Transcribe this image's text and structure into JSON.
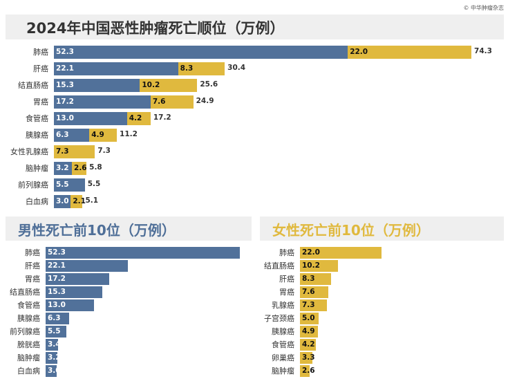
{
  "credit": "© 中华肿瘤杂志",
  "colors": {
    "male": "#51719a",
    "female": "#e0b93e"
  },
  "chart_data": [
    {
      "type": "bar",
      "stacked": true,
      "orientation": "horizontal",
      "title": "2024年中国恶性肿瘤死亡顺位（万例）",
      "categories": [
        "肺癌",
        "肝癌",
        "结直肠癌",
        "胃癌",
        "食管癌",
        "胰腺癌",
        "女性乳腺癌",
        "脑肿瘤",
        "前列腺癌",
        "白血病"
      ],
      "series": [
        {
          "name": "男性",
          "values": [
            52.3,
            22.1,
            15.3,
            17.2,
            13.0,
            6.3,
            null,
            3.2,
            5.5,
            3.0
          ]
        },
        {
          "name": "女性",
          "values": [
            22.0,
            8.3,
            10.2,
            7.6,
            4.2,
            4.9,
            7.3,
            2.6,
            null,
            2.1
          ]
        }
      ],
      "totals": [
        "74.3",
        "30.4",
        "25.6",
        "24.9",
        "17.2",
        "11.2",
        "7.3",
        "5.8",
        "5.5",
        "5.1"
      ]
    },
    {
      "type": "bar",
      "orientation": "horizontal",
      "title": "男性死亡前10位（万例）",
      "categories": [
        "肺癌",
        "肝癌",
        "胃癌",
        "结直肠癌",
        "食管癌",
        "胰腺癌",
        "前列腺癌",
        "膀胱癌",
        "脑肿瘤",
        "白血病"
      ],
      "values": [
        52.3,
        22.1,
        17.2,
        15.3,
        13.0,
        6.3,
        5.5,
        3.4,
        3.2,
        3.0
      ]
    },
    {
      "type": "bar",
      "orientation": "horizontal",
      "title": "女性死亡前10位（万例）",
      "categories": [
        "肺癌",
        "结直肠癌",
        "肝癌",
        "胃癌",
        "乳腺癌",
        "子宫颈癌",
        "胰腺癌",
        "食管癌",
        "卵巢癌",
        "脑肿瘤"
      ],
      "values": [
        22.0,
        10.2,
        8.3,
        7.6,
        7.3,
        5.0,
        4.9,
        4.2,
        3.3,
        2.6
      ]
    }
  ]
}
